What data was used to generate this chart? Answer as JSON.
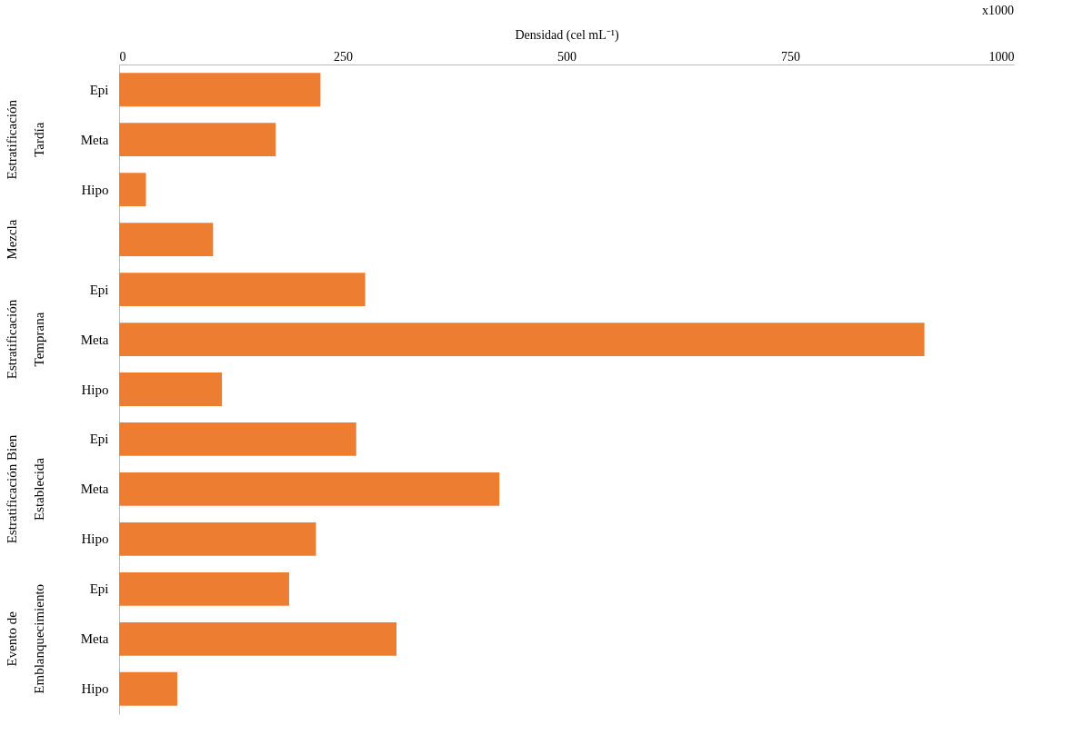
{
  "chart_data": {
    "type": "bar",
    "orientation": "horizontal",
    "xlabel": "Densidad (cel mL⁻¹)",
    "categories": [
      "Epi",
      "Meta",
      "Hipo",
      null,
      "Epi",
      "Meta",
      "Hipo",
      "Epi",
      "Meta",
      "Hipo",
      "Epi",
      "Meta",
      "Hipo"
    ],
    "values": [
      225,
      175,
      30,
      105,
      275,
      900,
      115,
      265,
      425,
      220,
      190,
      310,
      65
    ],
    "color": "#ed7d31",
    "xlim": [
      0,
      1000
    ],
    "xticks": [
      0,
      250,
      500,
      750,
      1000
    ],
    "annotations": [
      "x1000",
      {
        "text": "Estratificación\nTardía"
      },
      {
        "text": "Mezcla"
      },
      {
        "text": "Estratificación\nTemprana"
      },
      {
        "text": "Estratificación  Bien\nEstablecida"
      },
      {
        "text": "Evento de\nEmblanquecimiento"
      }
    ],
    "grid": false
  }
}
